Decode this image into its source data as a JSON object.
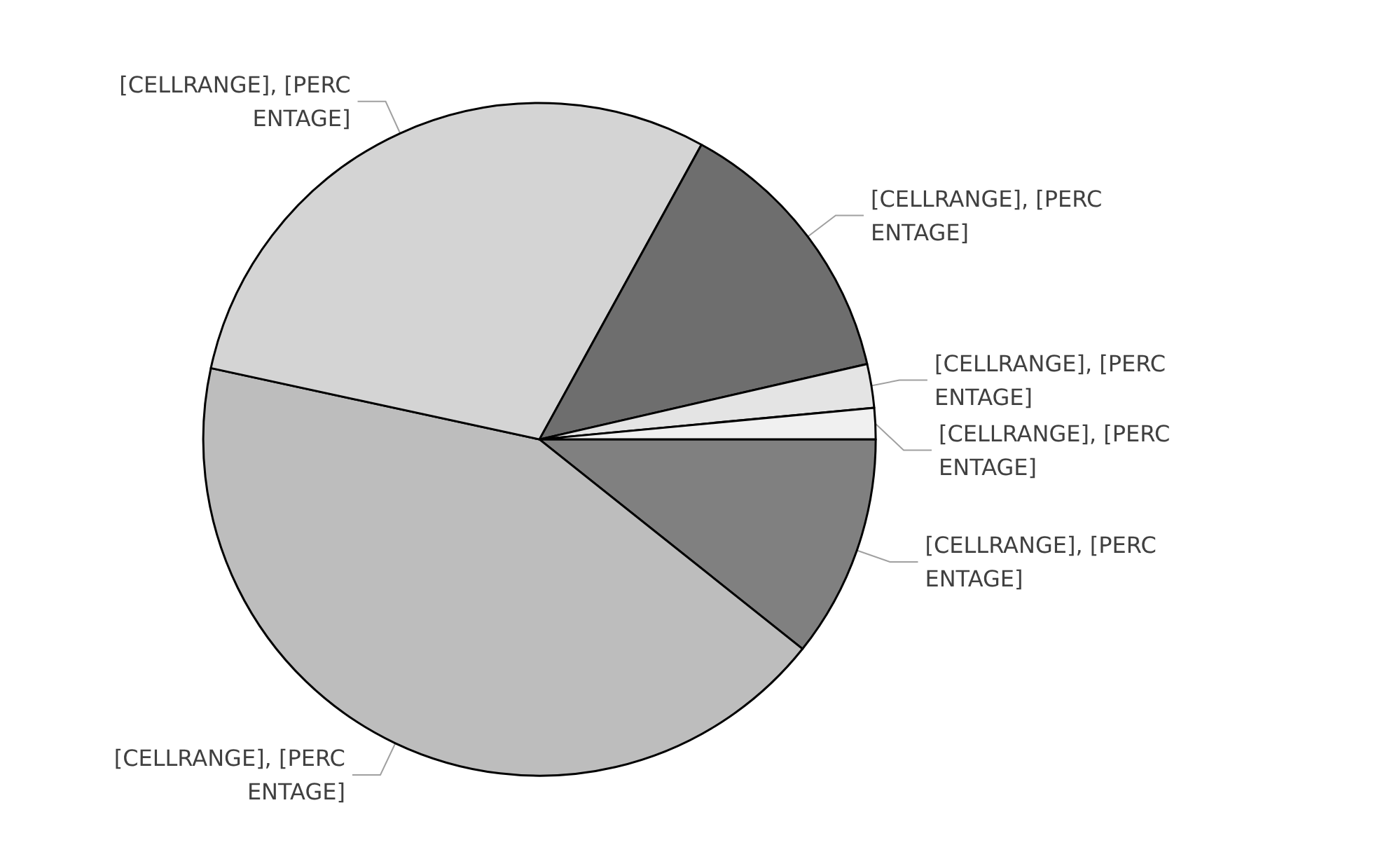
{
  "chart_data": {
    "type": "pie",
    "categories": [
      null,
      null,
      null,
      null,
      null,
      null
    ],
    "values": [
      10.7,
      42.7,
      29.6,
      13.4,
      2.1,
      1.5
    ],
    "colors": [
      "#808080",
      "#bdbdbd",
      "#d4d4d4",
      "#6e6e6e",
      "#e4e4e4",
      "#f0f0f0"
    ],
    "value_labels": [
      "[CELLRANGE], [PERCENTAGE]",
      "[CELLRANGE], [PERCENTAGE]",
      "[CELLRANGE], [PERCENTAGE]",
      "[CELLRANGE], [PERCENTAGE]",
      "[CELLRANGE], [PERCENTAGE]",
      "[CELLRANGE], [PERCENTAGE]"
    ]
  }
}
